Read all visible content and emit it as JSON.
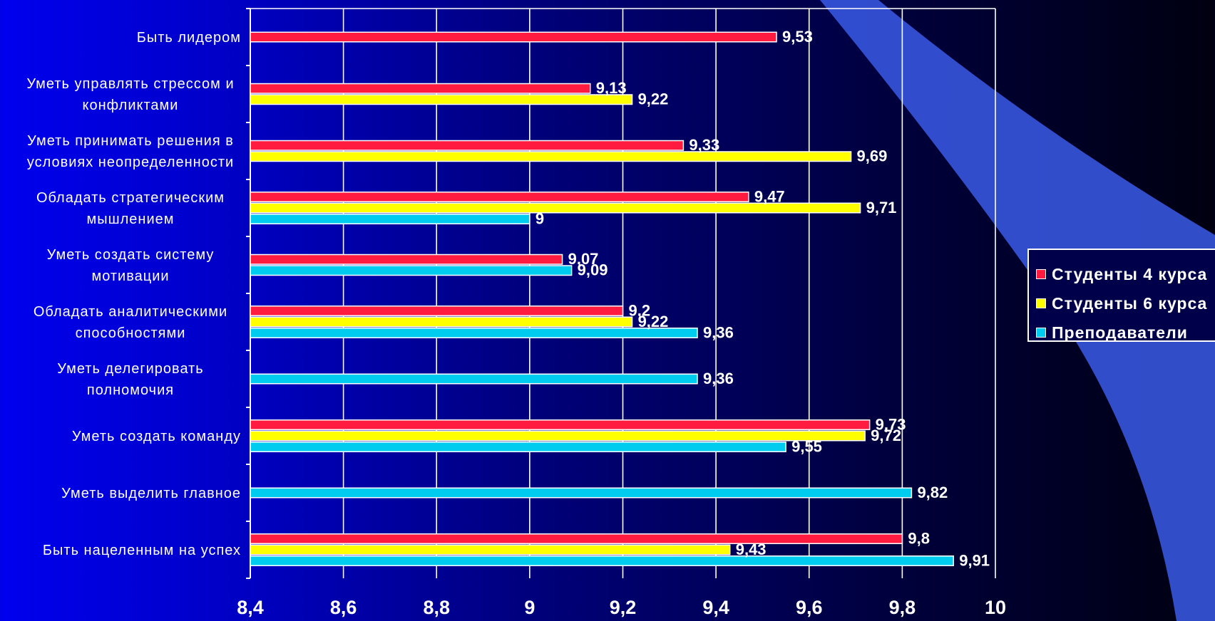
{
  "chart_data": {
    "type": "bar",
    "orientation": "horizontal",
    "xlim": [
      8.4,
      10
    ],
    "x_ticks": [
      "8,4",
      "8,6",
      "8,8",
      "9",
      "9,2",
      "9,4",
      "9,6",
      "9,8",
      "10"
    ],
    "grid": true,
    "legend_position": "right",
    "categories": [
      "Быть лидером",
      "Уметь управлять стрессом и конфликтами",
      "Уметь принимать решения в условиях неопределенности",
      "Обладать стратегическим мышлением",
      "Уметь создать систему мотивации",
      "Обладать аналитическими способностями",
      "Уметь делегировать полномочия",
      "Уметь создать команду",
      "Уметь выделить главное",
      "Быть нацеленным на успех"
    ],
    "category_lines": [
      [
        "Быть лидером"
      ],
      [
        "Уметь управлять стрессом и",
        "конфликтами"
      ],
      [
        "Уметь принимать решения в",
        "условиях неопределенности"
      ],
      [
        "Обладать стратегическим",
        "мышлением"
      ],
      [
        "Уметь создать систему",
        "мотивации"
      ],
      [
        "Обладать аналитическими",
        "способностями"
      ],
      [
        "Уметь делегировать",
        "полномочия"
      ],
      [
        "Уметь создать команду"
      ],
      [
        "Уметь выделить главное"
      ],
      [
        "Быть нацеленным на успех"
      ]
    ],
    "series": [
      {
        "name": "Студенты 4 курса",
        "color": "#ff1a40",
        "values": [
          9.53,
          9.13,
          9.33,
          9.47,
          9.07,
          9.2,
          null,
          9.73,
          null,
          9.8
        ],
        "labels": [
          "9,53",
          "9,13",
          "9,33",
          "9,47",
          "9,07",
          "9,2",
          null,
          "9,73",
          null,
          "9,8"
        ]
      },
      {
        "name": "Студенты 6 курса",
        "color": "#ffff00",
        "values": [
          null,
          9.22,
          9.69,
          9.71,
          null,
          9.22,
          null,
          9.72,
          null,
          9.43
        ],
        "labels": [
          null,
          "9,22",
          "9,69",
          "9,71",
          null,
          "9,22",
          null,
          "9,72",
          null,
          "9,43"
        ]
      },
      {
        "name": "Преподаватели",
        "color": "#00ccf0",
        "values": [
          null,
          null,
          null,
          9.0,
          9.09,
          9.36,
          9.36,
          9.55,
          9.82,
          9.91
        ],
        "labels": [
          null,
          null,
          null,
          "9",
          "9,09",
          "9,36",
          "9,36",
          "9,55",
          "9,82",
          "9,91"
        ]
      }
    ]
  },
  "legend": {
    "items": [
      {
        "label": "Студенты 4 курса",
        "color": "#ff1a40"
      },
      {
        "label": "Студенты 6 курса",
        "color": "#ffff00"
      },
      {
        "label": "Преподаватели",
        "color": "#00ccf0"
      }
    ]
  },
  "decor": {
    "ribbon_color": "#3a5be8"
  }
}
